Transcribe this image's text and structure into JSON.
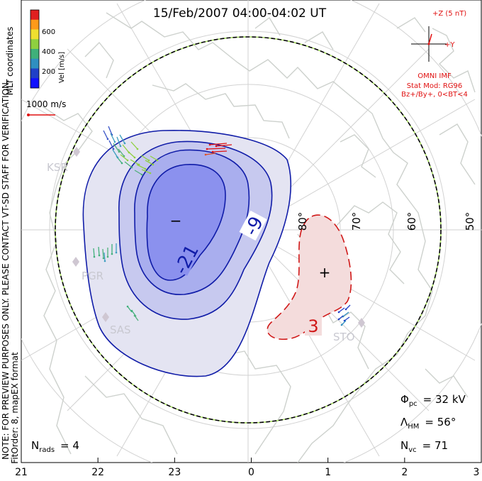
{
  "header": {
    "title": "15/Feb/2007 04:00-04:02 UT",
    "side_coords": "MLT coordinates",
    "side_note_1": "NOTE: FOR PREVIEW PURPOSES ONLY. PLEASE CONTACT VT-SD STAFF FOR VERIFICATION.",
    "side_note_2": "FitOrder: 8,  mapEX format"
  },
  "colorbar": {
    "label": "Vel [m/s]",
    "ticks": [
      "600",
      "400",
      "200"
    ],
    "colors": [
      "#e02020",
      "#ff9a1a",
      "#f0e030",
      "#8fd040",
      "#3fb07a",
      "#2f8fc0",
      "#2040c8",
      "#1010ff"
    ]
  },
  "scale_vector": {
    "label": "1000 m/s"
  },
  "imf": {
    "z_label": "+Z (5 nT)",
    "y_label": "+Y",
    "source": "OMNI IMF",
    "model": "Stat Mod: RG96",
    "condition": "Bz+/By+, 0<BT<4"
  },
  "latitudes": [
    "80°",
    "70°",
    "60°",
    "50°"
  ],
  "stations": [
    "KSR",
    "PGR",
    "SAS",
    "STO"
  ],
  "contours": {
    "neg_1": "-9",
    "neg_2": "-21",
    "pos_1": "3"
  },
  "cells": {
    "neg_symbol": "−",
    "pos_symbol": "+"
  },
  "stats": {
    "phi_main": "Φ",
    "phi_sub": "pc",
    "phi_value": "= 32 kV",
    "lambda_main": "Λ",
    "lambda_sub": "HM",
    "lambda_value": "= 56°",
    "nvc_main": "N",
    "nvc_sub": "vc",
    "nvc_value": "= 71",
    "nrads_main": "N",
    "nrads_sub": "rads",
    "nrads_value": "= 4"
  },
  "mlt_axis": [
    "21",
    "22",
    "23",
    "0",
    "1",
    "2",
    "3"
  ],
  "colors": {
    "neg_fill_outer": "#e4e4f2",
    "neg_fill_mid": "#c7c9ef",
    "neg_fill_inner": "#a9aeee",
    "neg_fill_core": "#8b91ee",
    "neg_contour": "#101ca8",
    "pos_fill": "#f4dcdc",
    "pos_contour": "#d01818",
    "annotation_red": "#e01010",
    "coast": "#cfd3cf"
  }
}
